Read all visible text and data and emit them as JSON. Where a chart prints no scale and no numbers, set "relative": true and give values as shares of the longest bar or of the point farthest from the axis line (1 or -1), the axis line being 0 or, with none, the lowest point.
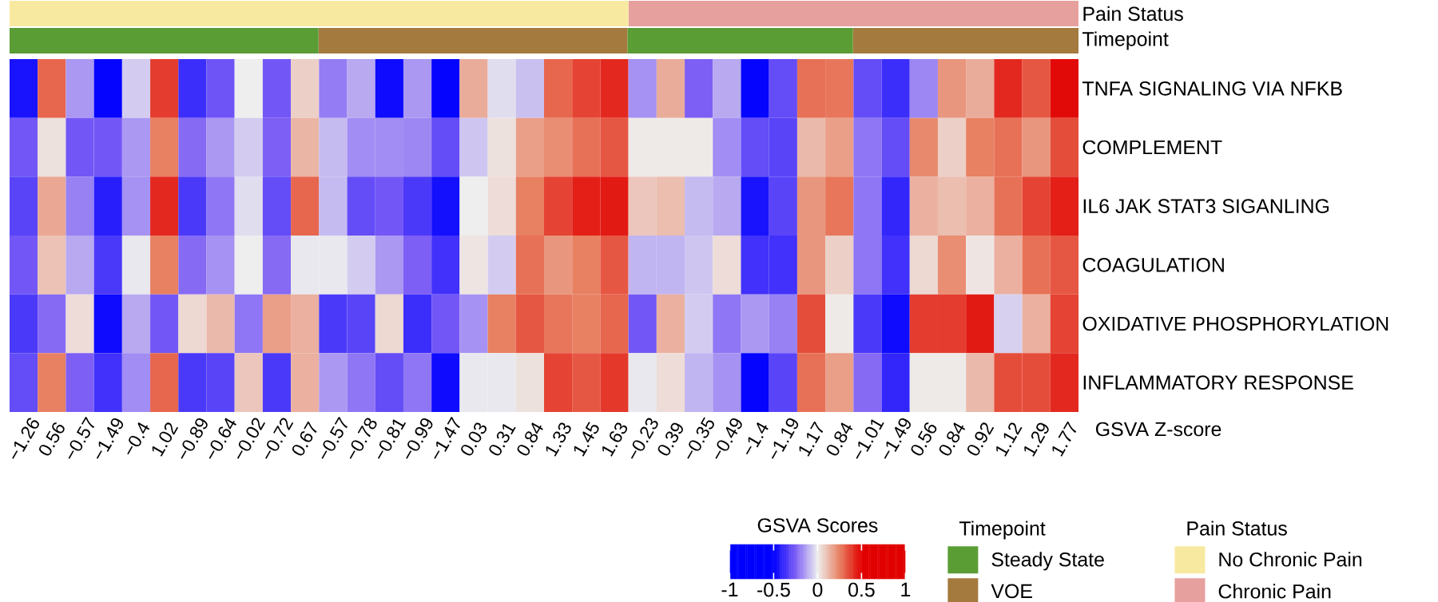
{
  "chart_data": [
    {
      "type": "bar",
      "orientation": "horizontal",
      "stacked": true,
      "relative": true,
      "categories": [
        "Pain Status"
      ],
      "legend": "bottom right",
      "legend_title": "Pain Status",
      "series": [
        {
          "name": "No Chronic Pain",
          "color": "#f7e9a0",
          "values": [
            0.579
          ]
        },
        {
          "name": "Chronic Pain",
          "color": "#e6a09e",
          "values": [
            0.421
          ]
        }
      ]
    },
    {
      "type": "bar",
      "orientation": "horizontal",
      "stacked": true,
      "relative": true,
      "categories": [
        "Timepoint"
      ],
      "legend": "bottom right",
      "legend_title": "Timepoint",
      "series": [
        {
          "name": "Steady State",
          "color": "#5a9d35",
          "values": [
            0.289
          ]
        },
        {
          "name": "VOE",
          "color": "#a57a3e",
          "values": [
            0.289
          ]
        },
        {
          "color": "#5a9d35",
          "values": [
            0.211
          ]
        },
        {
          "color": "#a57a3e",
          "values": [
            0.211
          ]
        }
      ]
    },
    {
      "type": "heatmap",
      "xlabel": "GSVA Z-score",
      "clabel": "GSVA Scores",
      "clim": [
        -1,
        1
      ],
      "cticks": [
        -1,
        -0.5,
        0,
        0.5,
        1
      ],
      "categories": [
        "−1.26",
        "0.56",
        "−0.57",
        "−1.49",
        "−0.4",
        "1.02",
        "−0.89",
        "−0.64",
        "−0.02",
        "−0.72",
        "0.67",
        "−0.57",
        "−0.78",
        "−0.81",
        "−0.99",
        "−1.47",
        "0.03",
        "0.31",
        "0.84",
        "1.33",
        "1.45",
        "1.63",
        "−0.23",
        "0.39",
        "−0.35",
        "−0.49",
        "−1.4",
        "−1.19",
        "1.17",
        "0.84",
        "−1.01",
        "−1.49",
        "0.56",
        "0.84",
        "0.92",
        "1.12",
        "1.29",
        "1.77"
      ],
      "y_categories": [
        "TNFA SIGNALING VIA NFKB",
        "COMPLEMENT",
        "IL6 JAK STAT3 SIGANLING",
        "COAGULATION",
        "OXIDATIVE PHOSPHORYLATION",
        "INFLAMMATORY RESPONSE"
      ],
      "cells": [
        [
          -0.45,
          0.3,
          -0.15,
          -0.49,
          -0.06,
          0.38,
          -0.38,
          -0.28,
          0,
          -0.27,
          0.07,
          -0.2,
          -0.12,
          -0.47,
          -0.15,
          -0.49,
          0.15,
          -0.03,
          -0.08,
          0.3,
          0.37,
          0.42,
          -0.16,
          0.15,
          -0.25,
          -0.12,
          -0.49,
          -0.3,
          0.28,
          0.27,
          -0.3,
          -0.38,
          -0.18,
          0.2,
          0.15,
          0.42,
          0.33,
          0.48
        ],
        [
          -0.27,
          0.03,
          -0.27,
          -0.27,
          -0.15,
          0.25,
          -0.23,
          -0.15,
          -0.06,
          -0.25,
          0.13,
          -0.09,
          -0.17,
          -0.17,
          -0.18,
          -0.3,
          -0.07,
          0.03,
          0.18,
          0.22,
          0.28,
          0.33,
          0.01,
          0.01,
          0.01,
          -0.17,
          -0.3,
          -0.32,
          0.12,
          0.18,
          -0.21,
          -0.3,
          0.23,
          0.07,
          0.25,
          0.28,
          0.2,
          0.35
        ],
        [
          -0.32,
          0.16,
          -0.19,
          -0.42,
          -0.16,
          0.42,
          -0.35,
          -0.21,
          -0.03,
          -0.3,
          0.3,
          -0.09,
          -0.3,
          -0.27,
          -0.35,
          -0.46,
          0,
          0.04,
          0.25,
          0.37,
          0.44,
          0.45,
          0.09,
          0.11,
          -0.09,
          -0.12,
          -0.45,
          -0.32,
          0.2,
          0.27,
          -0.21,
          -0.4,
          0.14,
          0.11,
          0.14,
          0.28,
          0.37,
          0.44
        ],
        [
          -0.27,
          0.1,
          -0.12,
          -0.35,
          -0.01,
          0.25,
          -0.23,
          -0.16,
          0,
          -0.23,
          -0.01,
          -0.01,
          -0.06,
          -0.15,
          -0.25,
          -0.37,
          0.02,
          -0.06,
          0.28,
          0.2,
          0.25,
          0.33,
          -0.1,
          -0.1,
          -0.07,
          0.04,
          -0.37,
          -0.37,
          0.2,
          0.07,
          -0.21,
          -0.37,
          0.05,
          0.22,
          0.02,
          0.14,
          0.28,
          0.33
        ],
        [
          -0.35,
          -0.23,
          0.04,
          -0.47,
          -0.12,
          -0.27,
          0.05,
          0.12,
          -0.21,
          0.18,
          0.14,
          -0.35,
          -0.32,
          0.05,
          -0.38,
          -0.27,
          -0.16,
          0.25,
          0.33,
          0.27,
          0.25,
          0.3,
          -0.27,
          0.14,
          -0.06,
          -0.21,
          -0.15,
          -0.19,
          0.35,
          0.01,
          -0.35,
          -0.47,
          0.38,
          0.38,
          0.45,
          -0.05,
          0.14,
          0.37
        ],
        [
          -0.3,
          0.25,
          -0.25,
          -0.37,
          -0.17,
          0.3,
          -0.35,
          -0.32,
          0.09,
          -0.35,
          0.14,
          -0.15,
          -0.21,
          -0.3,
          -0.21,
          -0.47,
          -0.01,
          -0.01,
          0.03,
          0.37,
          0.33,
          0.39,
          -0.01,
          0.04,
          -0.1,
          -0.16,
          -0.49,
          -0.32,
          0.28,
          0.18,
          -0.23,
          -0.4,
          0.01,
          0.01,
          0.12,
          0.35,
          0.35,
          0.42
        ]
      ]
    }
  ]
}
